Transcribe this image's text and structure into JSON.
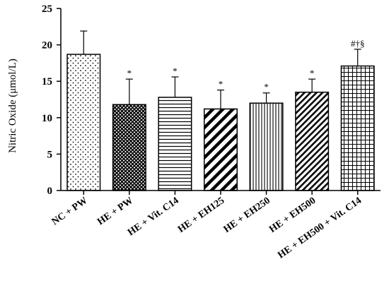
{
  "chart_data": {
    "type": "bar",
    "title": "",
    "xlabel": "",
    "ylabel": "Nitric Oxide (μmol/L)",
    "ylim": [
      0,
      25
    ],
    "yticks": [
      "0",
      "5",
      "10",
      "15",
      "20",
      "25"
    ],
    "grid": false,
    "categories": [
      "NC + PW",
      "HE + PW",
      "HE + Vit. C14",
      "HE + EH125",
      "HE + EH250",
      "HE + EH500",
      "HE + EH500 + Vit. C14"
    ],
    "values": [
      18.7,
      11.8,
      12.8,
      11.2,
      12.0,
      13.5,
      17.1
    ],
    "errors": [
      3.2,
      3.5,
      2.8,
      2.6,
      1.4,
      1.8,
      2.3
    ],
    "annotations": [
      "",
      "*",
      "*",
      "*",
      "*",
      "*",
      "#†§"
    ],
    "patterns": [
      "dots",
      "crosshatch",
      "horizontal-lines",
      "diagonal-thick",
      "vertical-lines",
      "diagonal-thin",
      "grid"
    ]
  }
}
